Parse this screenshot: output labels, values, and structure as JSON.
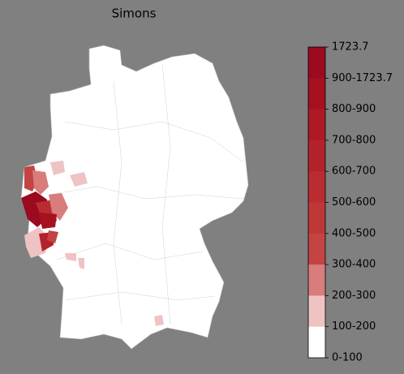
{
  "title": "Simons",
  "legend": {
    "labels": [
      "1723.7",
      "900-1723.7",
      "800-900",
      "700-800",
      "600-700",
      "500-600",
      "400-500",
      "300-400",
      "200-300",
      "100-200",
      "0-100"
    ],
    "colors": [
      "#9b0a1e",
      "#a5111f",
      "#ad1a24",
      "#b3222a",
      "#b92c31",
      "#be3737",
      "#c44343",
      "#d87c7c",
      "#efc3c3",
      "#ffffff"
    ]
  }
}
